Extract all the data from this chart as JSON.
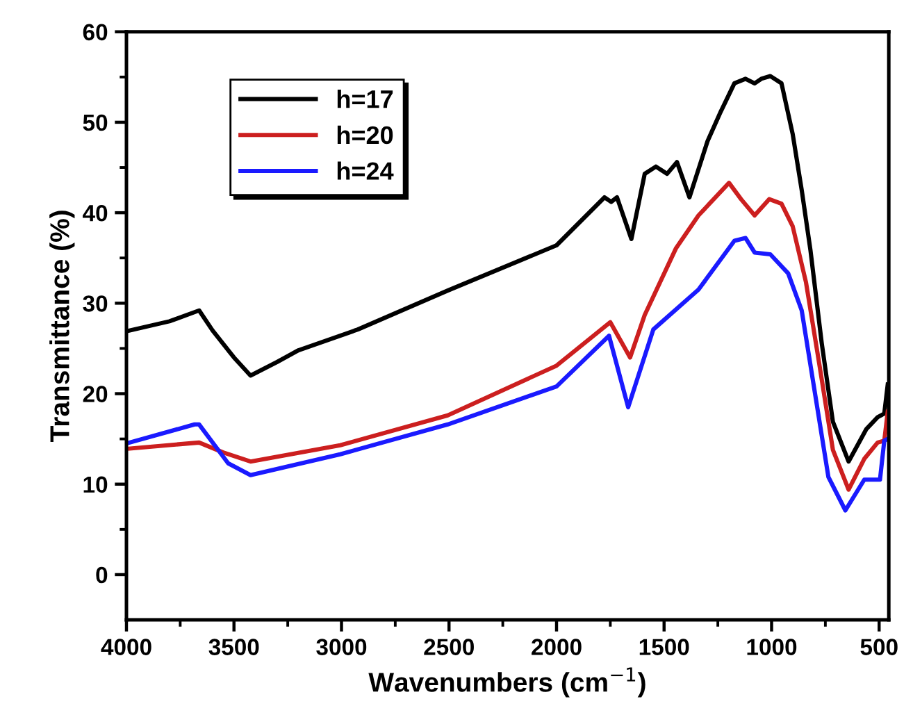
{
  "chart_data": {
    "type": "line",
    "xlabel": "Wavenumbers (cm$^{−1}$)",
    "ylabel": "Transmittance (%)",
    "xlim": [
      4000,
      455
    ],
    "ylim": [
      -5,
      60
    ],
    "xticks": [
      4000,
      3500,
      3000,
      2500,
      2000,
      1500,
      1000,
      500
    ],
    "yticks": [
      0,
      10,
      20,
      30,
      40,
      50,
      60
    ],
    "grid": false,
    "legend": "top left",
    "marker": "none",
    "line_style": "solid",
    "series": [
      {
        "name": "h=17",
        "color": "#000000",
        "x": [
          4000,
          3800,
          3662,
          3600,
          3500,
          3423,
          3300,
          3200,
          3006,
          2924,
          2506,
          2000,
          1777,
          1746,
          1719,
          1652,
          1590,
          1538,
          1486,
          1440,
          1382,
          1298,
          1236,
          1173,
          1121,
          1079,
          1048,
          1006,
          954,
          902,
          860,
          819,
          767,
          715,
          642,
          559,
          507,
          476,
          460
        ],
        "values": [
          26.9,
          28,
          29.2,
          27,
          24,
          22,
          23.5,
          24.8,
          26.4,
          27.1,
          31.4,
          36.4,
          41.7,
          41.2,
          41.7,
          37.1,
          44.3,
          45.1,
          44.3,
          45.6,
          41.7,
          47.9,
          51.2,
          54.3,
          54.8,
          54.3,
          54.8,
          55.1,
          54.3,
          48.7,
          42.5,
          35.8,
          25.6,
          16.9,
          12.5,
          16.1,
          17.4,
          17.8,
          21
        ]
      },
      {
        "name": "h=20",
        "color": "#cc1f1f",
        "x": [
          4000,
          3662,
          3550,
          3423,
          3006,
          2506,
          2000,
          1750,
          1658,
          1590,
          1444,
          1340,
          1198,
          1142,
          1079,
          1011,
          954,
          902,
          840,
          777,
          715,
          642,
          569,
          507,
          476,
          460
        ],
        "values": [
          13.9,
          14.6,
          13.5,
          12.5,
          14.3,
          17.6,
          23.1,
          27.9,
          24.0,
          28.7,
          36.1,
          39.7,
          43.3,
          41.5,
          39.7,
          41.5,
          41.0,
          38.5,
          32.3,
          23.1,
          13.8,
          9.4,
          12.8,
          14.6,
          14.8,
          18
        ]
      },
      {
        "name": "h=24",
        "color": "#1a1aff",
        "x": [
          4000,
          3683,
          3662,
          3527,
          3423,
          3006,
          2506,
          2000,
          1756,
          1667,
          1550,
          1340,
          1173,
          1121,
          1079,
          1006,
          923,
          860,
          798,
          736,
          657,
          569,
          496,
          476,
          460
        ],
        "values": [
          14.5,
          16.6,
          16.6,
          12.3,
          11.0,
          13.3,
          16.6,
          20.8,
          26.4,
          18.5,
          27.1,
          31.5,
          36.9,
          37.2,
          35.6,
          35.4,
          33.3,
          29.2,
          20.0,
          10.8,
          7.1,
          10.5,
          10.5,
          14.8,
          15
        ]
      }
    ]
  }
}
